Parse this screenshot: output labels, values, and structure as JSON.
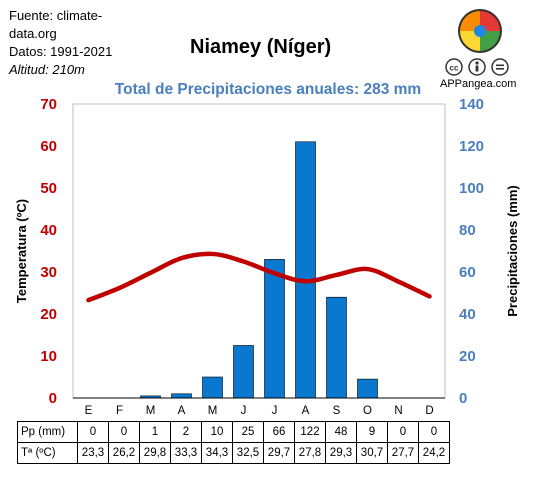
{
  "source": {
    "line1": "Fuente: climate-",
    "line2": "data.org",
    "line3": "Datos: 1991-2021",
    "line4": "Altitud: 210m"
  },
  "branding": {
    "site": "APPangea.com"
  },
  "colors": {
    "temperature": "#c00000",
    "precipitation": "#0b78d0",
    "accent": "#4a7fbd"
  },
  "chart_data": {
    "type": "bar",
    "title": "Niamey (Níger)",
    "subtitle": "Total de Precipitaciones anuales: 283 mm",
    "categories": [
      "E",
      "F",
      "M",
      "A",
      "M",
      "J",
      "J",
      "A",
      "S",
      "O",
      "N",
      "D"
    ],
    "series": [
      {
        "name": "Precipitaciones (mm)",
        "type": "bar",
        "axis": "right",
        "values": [
          0,
          0,
          1,
          2,
          10,
          25,
          66,
          122,
          48,
          9,
          0,
          0
        ]
      },
      {
        "name": "Temperatura (ºC)",
        "type": "line",
        "axis": "left",
        "values": [
          23.3,
          26.2,
          29.8,
          33.3,
          34.3,
          32.5,
          29.7,
          27.8,
          29.3,
          30.7,
          27.7,
          24.2
        ]
      }
    ],
    "ylabel_left": "Temperatura (ºC)",
    "ylabel_right": "Precipitaciones (mm)",
    "ylim_left": [
      0,
      70
    ],
    "ylim_right": [
      0,
      140
    ],
    "yticks_left": [
      0,
      10,
      20,
      30,
      40,
      50,
      60,
      70
    ],
    "yticks_right": [
      0,
      20,
      40,
      60,
      80,
      100,
      120,
      140
    ],
    "grid": false,
    "table": {
      "row_labels": [
        "Pp (mm)",
        "Tª (ºC)"
      ],
      "pp": [
        "0",
        "0",
        "1",
        "2",
        "10",
        "25",
        "66",
        "122",
        "48",
        "9",
        "0",
        "0"
      ],
      "temp": [
        "23,3",
        "26,2",
        "29,8",
        "33,3",
        "34,3",
        "32,5",
        "29,7",
        "27,8",
        "29,3",
        "30,7",
        "27,7",
        "24,2"
      ]
    }
  }
}
